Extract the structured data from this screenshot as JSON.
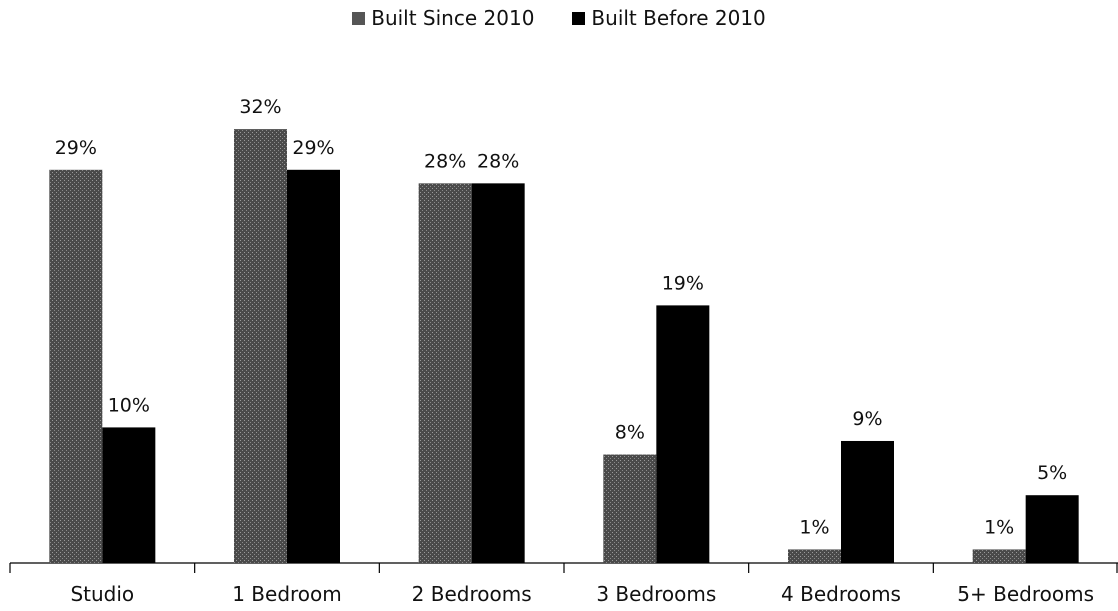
{
  "chart_data": {
    "type": "bar",
    "categories": [
      "Studio",
      "1 Bedroom",
      "2 Bedrooms",
      "3 Bedrooms",
      "4 Bedrooms",
      "5+ Bedrooms"
    ],
    "series": [
      {
        "name": "Built Since 2010",
        "values": [
          29,
          32,
          28,
          8,
          1,
          1
        ],
        "labels": [
          "29%",
          "32%",
          "28%",
          "8%",
          "1%",
          "1%"
        ],
        "color": "#555555"
      },
      {
        "name": "Built Before 2010",
        "values": [
          10,
          29,
          28,
          19,
          9,
          5
        ],
        "labels": [
          "10%",
          "29%",
          "28%",
          "19%",
          "9%",
          "5%"
        ],
        "color": "#000000"
      }
    ],
    "ylim": [
      0,
      34
    ],
    "grid": false,
    "legend_position": "top-center",
    "y_axis_visible": false
  }
}
